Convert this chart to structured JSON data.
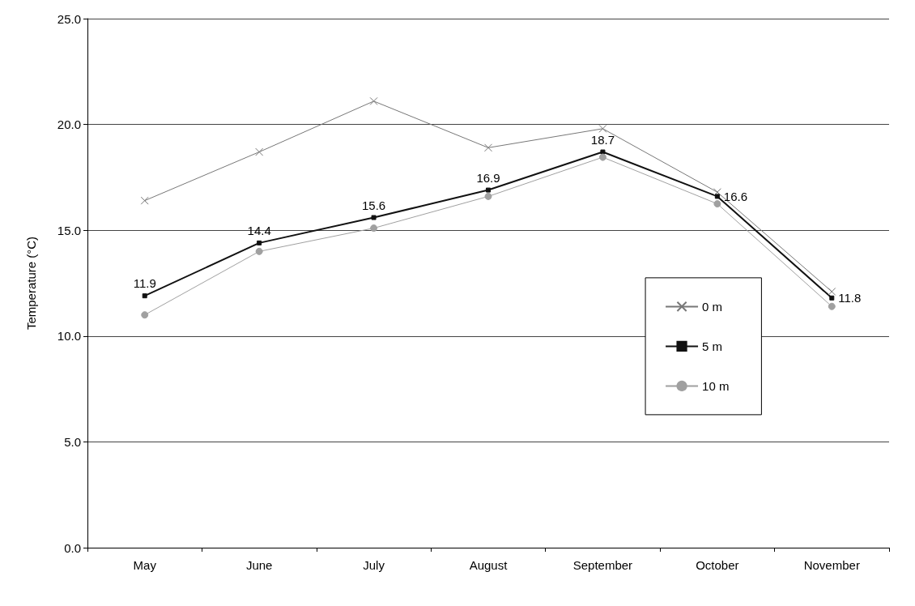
{
  "chart_data": {
    "type": "line",
    "ylabel": "Temperature (°C)",
    "categories": [
      "May",
      "June",
      "July",
      "August",
      "September",
      "October",
      "November"
    ],
    "series": [
      {
        "name": "0 m",
        "color": "#777777",
        "marker": "cross",
        "values": [
          16.4,
          18.7,
          21.1,
          18.9,
          19.8,
          16.8,
          12.1
        ]
      },
      {
        "name": "5 m",
        "color": "#111111",
        "marker": "square",
        "values": [
          11.9,
          14.4,
          15.6,
          16.9,
          18.7,
          16.6,
          11.8
        ],
        "value_labels": [
          "11.9",
          "14.4",
          "15.6",
          "16.9",
          "18.7",
          "16.6",
          "11.8"
        ]
      },
      {
        "name": "10 m",
        "color": "#a0a0a0",
        "marker": "circle",
        "values": [
          11.0,
          14.0,
          15.1,
          16.6,
          18.45,
          16.25,
          11.4
        ]
      }
    ],
    "ylim": [
      0,
      25
    ],
    "yticks": [
      {
        "value": 0,
        "label": "0.0"
      },
      {
        "value": 5,
        "label": "5.0"
      },
      {
        "value": 10,
        "label": "10.0"
      },
      {
        "value": 15,
        "label": "15.0"
      },
      {
        "value": 20,
        "label": "20.0"
      },
      {
        "value": 25,
        "label": "25.0"
      }
    ],
    "grid": "y",
    "legend": "right"
  }
}
